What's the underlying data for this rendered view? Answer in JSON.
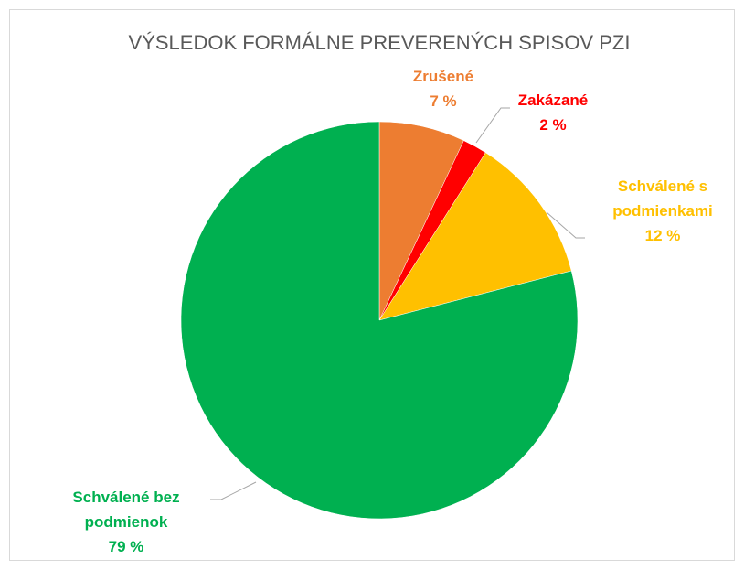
{
  "chart_data": {
    "type": "pie",
    "title": "VÝSLEDOK FORMÁLNE PREVERENÝCH SPISOV PZI",
    "categories": [
      "Zrušené",
      "Zakázané",
      "Schválené s podmienkami",
      "Schválené bez podmienok"
    ],
    "values": [
      7,
      2,
      12,
      79
    ],
    "value_labels": [
      "7 %",
      "2 %",
      "12 %",
      "79 %"
    ],
    "colors": [
      "#ED7D31",
      "#FF0000",
      "#FFC000",
      "#00B050"
    ]
  }
}
